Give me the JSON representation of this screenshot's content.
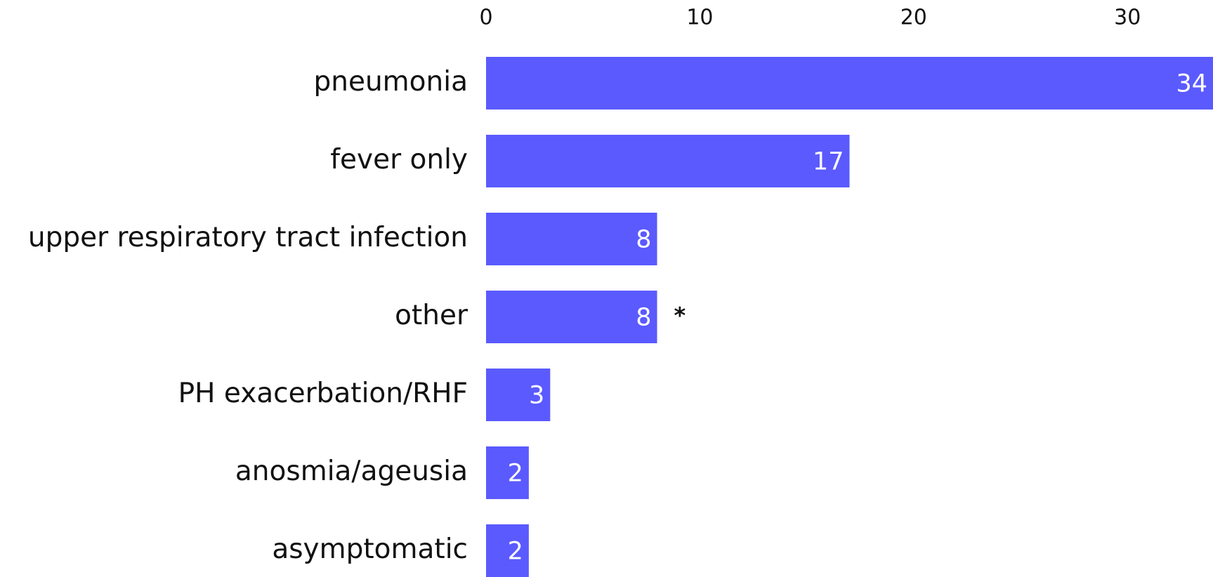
{
  "chart_data": {
    "type": "bar",
    "orientation": "horizontal",
    "categories": [
      "pneumonia",
      "fever only",
      "upper respiratory tract infection",
      "other",
      "PH exacerbation/RHF",
      "anosmia/ageusia",
      "asymptomatic"
    ],
    "values": [
      34,
      17,
      8,
      8,
      3,
      2,
      2
    ],
    "color": "#5a5aff",
    "xlim": [
      0,
      34
    ],
    "xticks": [
      0,
      10,
      20,
      30
    ],
    "grid": false,
    "annotations": [
      {
        "text": "*",
        "category": "other"
      }
    ]
  }
}
